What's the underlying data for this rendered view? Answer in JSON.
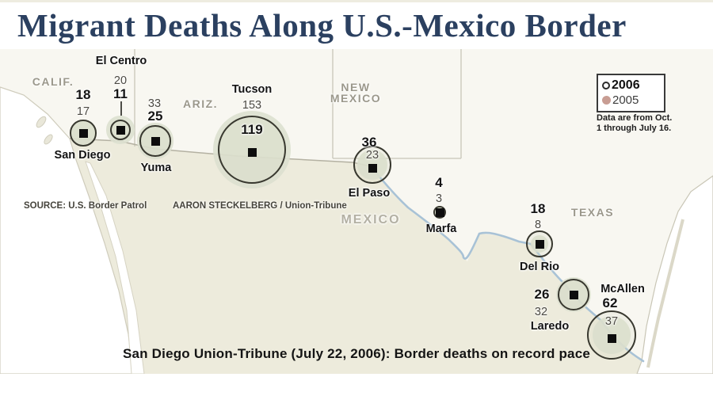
{
  "title": "Migrant Deaths Along U.S.-Mexico Border",
  "legend": {
    "items": [
      {
        "symbol": "open-circle",
        "label": "2006"
      },
      {
        "symbol": "filled-dot",
        "label": "2005"
      }
    ],
    "note": "Data are from Oct. 1 through July 16."
  },
  "map": {
    "state_labels": [
      {
        "text": "CALIF."
      },
      {
        "text": "ARIZ."
      },
      {
        "text": "NEW MEXICO"
      },
      {
        "text": "TEXAS"
      },
      {
        "text": "MEXICO"
      }
    ],
    "source": "SOURCE: U.S. Border Patrol",
    "credit": "AARON STECKELBERG / Union-Tribune"
  },
  "caption": "San Diego Union-Tribune (July 22, 2006): Border deaths on record pace",
  "colors": {
    "title_text": "#2b4060",
    "bubble_fill": "#dce0cf",
    "bubble_ring": "#38382f",
    "legend_2005_dot": "#c89d93",
    "river": "#a8c2d6",
    "land_mexico": "#edebdc",
    "land_us": "#f8f7f1"
  },
  "chart_data": {
    "type": "bubble-map",
    "title": "Migrant Deaths Along U.S.-Mexico Border",
    "legend": [
      "2006",
      "2005"
    ],
    "note": "Data are from Oct. 1 through July 16.",
    "encoding": "circle outline area = 2006 deaths (bold number); filled disc area = 2005 deaths (light number); black square = border patrol sector location",
    "sectors": [
      {
        "name": "San Diego",
        "deaths_2006": 18,
        "deaths_2005": 17
      },
      {
        "name": "El Centro",
        "deaths_2006": 11,
        "deaths_2005": 20
      },
      {
        "name": "Yuma",
        "deaths_2006": 25,
        "deaths_2005": 33
      },
      {
        "name": "Tucson",
        "deaths_2006": 119,
        "deaths_2005": 153
      },
      {
        "name": "El Paso",
        "deaths_2006": 36,
        "deaths_2005": 23
      },
      {
        "name": "Marfa",
        "deaths_2006": 4,
        "deaths_2005": 3
      },
      {
        "name": "Del Rio",
        "deaths_2006": 18,
        "deaths_2005": 8
      },
      {
        "name": "Laredo",
        "deaths_2006": 26,
        "deaths_2005": 32
      },
      {
        "name": "McAllen",
        "deaths_2006": 62,
        "deaths_2005": 37
      }
    ]
  }
}
